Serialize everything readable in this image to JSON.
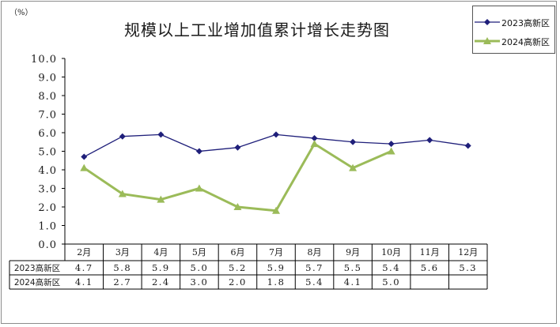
{
  "unit_label": "（%）",
  "title": "规模以上工业增加值累计增长走势图",
  "chart_data": {
    "type": "line",
    "title": "规模以上工业增加值累计增长走势图",
    "unit": "（%）",
    "categories": [
      "2月",
      "3月",
      "4月",
      "5月",
      "6月",
      "7月",
      "8月",
      "9月",
      "10月",
      "11月",
      "12月"
    ],
    "ylim": [
      0,
      10
    ],
    "yticks": [
      "0.0",
      "1.0",
      "2.0",
      "3.0",
      "4.0",
      "5.0",
      "6.0",
      "7.0",
      "8.0",
      "9.0",
      "10.0"
    ],
    "grid": false,
    "legend_position": "top-right",
    "series": [
      {
        "name": "2023高新区",
        "color": "#1f1f7a",
        "marker": "diamond",
        "values": [
          4.7,
          5.8,
          5.9,
          5.0,
          5.2,
          5.9,
          5.7,
          5.5,
          5.4,
          5.6,
          5.3
        ],
        "labels": [
          "4.7",
          "5.8",
          "5.9",
          "5.0",
          "5.2",
          "5.9",
          "5.7",
          "5.5",
          "5.4",
          "5.6",
          "5.3"
        ]
      },
      {
        "name": "2024高新区",
        "color": "#9bbb59",
        "marker": "triangle",
        "values": [
          4.1,
          2.7,
          2.4,
          3.0,
          2.0,
          1.8,
          5.4,
          4.1,
          5.0,
          null,
          null
        ],
        "labels": [
          "4.1",
          "2.7",
          "2.4",
          "3.0",
          "2.0",
          "1.8",
          "5.4",
          "4.1",
          "5.0",
          "",
          ""
        ]
      }
    ]
  }
}
